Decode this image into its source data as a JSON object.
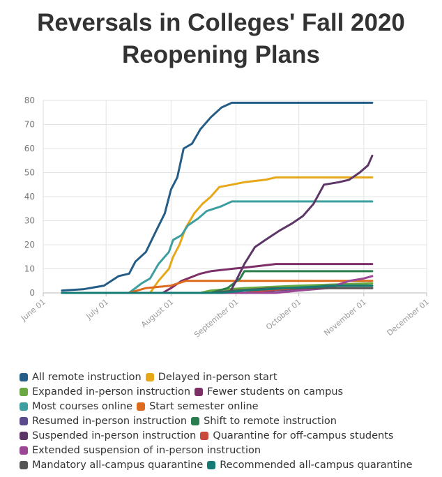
{
  "title_line1": "Reversals in Colleges' Fall 2020",
  "title_line2": "Reopening Plans",
  "chart_data": {
    "type": "line",
    "title": "Reversals in Colleges' Fall 2020 Reopening Plans",
    "xlabel": "",
    "ylabel": "",
    "ylim": [
      0,
      80
    ],
    "xlim": [
      "2020-06-01",
      "2020-12-01"
    ],
    "y_ticks": [
      "0",
      "10",
      "20",
      "30",
      "40",
      "50",
      "60",
      "70",
      "80"
    ],
    "x_ticks": [
      {
        "date": "2020-06-01",
        "label": "June 01"
      },
      {
        "date": "2020-07-01",
        "label": "July 01"
      },
      {
        "date": "2020-08-01",
        "label": "August 01"
      },
      {
        "date": "2020-09-01",
        "label": "September 01"
      },
      {
        "date": "2020-10-01",
        "label": "October 01"
      },
      {
        "date": "2020-11-01",
        "label": "November 01"
      },
      {
        "date": "2020-12-01",
        "label": "December 01"
      }
    ],
    "grid": true,
    "legend_position": "bottom",
    "series": [
      {
        "name": "All remote instruction",
        "color": "#255d86",
        "points": [
          [
            "2020-06-10",
            1
          ],
          [
            "2020-06-20",
            1.5
          ],
          [
            "2020-06-30",
            3
          ],
          [
            "2020-07-07",
            7
          ],
          [
            "2020-07-12",
            8
          ],
          [
            "2020-07-15",
            13
          ],
          [
            "2020-07-20",
            17
          ],
          [
            "2020-07-25",
            26
          ],
          [
            "2020-07-29",
            33
          ],
          [
            "2020-08-01",
            43
          ],
          [
            "2020-08-04",
            48
          ],
          [
            "2020-08-07",
            60
          ],
          [
            "2020-08-11",
            62
          ],
          [
            "2020-08-15",
            68
          ],
          [
            "2020-08-20",
            73
          ],
          [
            "2020-08-25",
            77
          ],
          [
            "2020-08-30",
            79
          ],
          [
            "2020-11-05",
            79
          ]
        ]
      },
      {
        "name": "Delayed in-person start",
        "color": "#e6a818",
        "points": [
          [
            "2020-06-10",
            0
          ],
          [
            "2020-07-22",
            0
          ],
          [
            "2020-07-26",
            5
          ],
          [
            "2020-07-31",
            10
          ],
          [
            "2020-08-02",
            15
          ],
          [
            "2020-08-05",
            20
          ],
          [
            "2020-08-08",
            27
          ],
          [
            "2020-08-12",
            33
          ],
          [
            "2020-08-16",
            37
          ],
          [
            "2020-08-20",
            40
          ],
          [
            "2020-08-24",
            44
          ],
          [
            "2020-08-30",
            45
          ],
          [
            "2020-09-05",
            46
          ],
          [
            "2020-09-15",
            47
          ],
          [
            "2020-09-20",
            48
          ],
          [
            "2020-11-05",
            48
          ]
        ]
      },
      {
        "name": "Expanded in-person instruction",
        "color": "#6aa842",
        "points": [
          [
            "2020-06-10",
            0
          ],
          [
            "2020-08-15",
            0
          ],
          [
            "2020-08-20",
            1
          ],
          [
            "2020-09-05",
            2
          ],
          [
            "2020-10-01",
            3
          ],
          [
            "2020-11-05",
            4
          ]
        ]
      },
      {
        "name": "Fewer students on campus",
        "color": "#7d3068",
        "points": [
          [
            "2020-06-10",
            0
          ],
          [
            "2020-07-28",
            0
          ],
          [
            "2020-08-01",
            2
          ],
          [
            "2020-08-06",
            5
          ],
          [
            "2020-08-15",
            8
          ],
          [
            "2020-08-20",
            9
          ],
          [
            "2020-08-30",
            10
          ],
          [
            "2020-09-10",
            11
          ],
          [
            "2020-09-20",
            12
          ],
          [
            "2020-11-05",
            12
          ]
        ]
      },
      {
        "name": "Most courses online",
        "color": "#3d9fa0",
        "points": [
          [
            "2020-06-10",
            0
          ],
          [
            "2020-07-12",
            0
          ],
          [
            "2020-07-18",
            4
          ],
          [
            "2020-07-22",
            6
          ],
          [
            "2020-07-26",
            12
          ],
          [
            "2020-07-31",
            17
          ],
          [
            "2020-08-02",
            22
          ],
          [
            "2020-08-06",
            24
          ],
          [
            "2020-08-09",
            28
          ],
          [
            "2020-08-14",
            31
          ],
          [
            "2020-08-18",
            34
          ],
          [
            "2020-08-25",
            36
          ],
          [
            "2020-08-30",
            38
          ],
          [
            "2020-11-05",
            38
          ]
        ]
      },
      {
        "name": "Start semester online",
        "color": "#dd6b1f",
        "points": [
          [
            "2020-06-10",
            0
          ],
          [
            "2020-07-12",
            0
          ],
          [
            "2020-07-20",
            2
          ],
          [
            "2020-08-01",
            3
          ],
          [
            "2020-08-08",
            5
          ],
          [
            "2020-11-05",
            5
          ]
        ]
      },
      {
        "name": "Resumed in-person instruction",
        "color": "#5b4a8c",
        "points": [
          [
            "2020-06-10",
            0
          ],
          [
            "2020-09-10",
            0
          ],
          [
            "2020-09-20",
            1
          ],
          [
            "2020-10-05",
            2
          ],
          [
            "2020-10-15",
            3
          ],
          [
            "2020-11-05",
            3
          ]
        ]
      },
      {
        "name": "Shift to remote instruction",
        "color": "#2a7e4e",
        "points": [
          [
            "2020-06-10",
            0
          ],
          [
            "2020-08-20",
            0
          ],
          [
            "2020-08-28",
            2
          ],
          [
            "2020-09-03",
            6
          ],
          [
            "2020-09-05",
            9
          ],
          [
            "2020-11-05",
            9
          ]
        ]
      },
      {
        "name": "Suspended in-person instruction",
        "color": "#5d3668",
        "points": [
          [
            "2020-06-10",
            0
          ],
          [
            "2020-08-29",
            0
          ],
          [
            "2020-09-01",
            5
          ],
          [
            "2020-09-05",
            12
          ],
          [
            "2020-09-10",
            19
          ],
          [
            "2020-09-15",
            22
          ],
          [
            "2020-09-22",
            26
          ],
          [
            "2020-09-28",
            29
          ],
          [
            "2020-10-03",
            32
          ],
          [
            "2020-10-08",
            37
          ],
          [
            "2020-10-13",
            45
          ],
          [
            "2020-10-20",
            46
          ],
          [
            "2020-10-25",
            47
          ],
          [
            "2020-10-30",
            50
          ],
          [
            "2020-11-03",
            53
          ],
          [
            "2020-11-05",
            57
          ]
        ]
      },
      {
        "name": "Quarantine for off-campus students",
        "color": "#c94a3d",
        "points": [
          [
            "2020-06-10",
            0
          ],
          [
            "2020-09-05",
            0
          ],
          [
            "2020-09-15",
            1
          ],
          [
            "2020-10-01",
            2
          ],
          [
            "2020-11-05",
            2
          ]
        ]
      },
      {
        "name": "Extended suspension of in-person instruction",
        "color": "#9b4796",
        "points": [
          [
            "2020-06-10",
            0
          ],
          [
            "2020-09-20",
            0
          ],
          [
            "2020-10-01",
            1
          ],
          [
            "2020-10-15",
            2
          ],
          [
            "2020-10-25",
            5
          ],
          [
            "2020-11-01",
            6
          ],
          [
            "2020-11-05",
            7
          ]
        ]
      },
      {
        "name": "Mandatory all-campus quarantine",
        "color": "#555555",
        "points": [
          [
            "2020-06-10",
            0
          ],
          [
            "2020-08-20",
            0
          ],
          [
            "2020-09-01",
            1
          ],
          [
            "2020-09-20",
            2
          ],
          [
            "2020-11-05",
            2
          ]
        ]
      },
      {
        "name": "Recommended all-campus quarantine",
        "color": "#147a74",
        "points": [
          [
            "2020-06-10",
            0
          ],
          [
            "2020-08-25",
            0
          ],
          [
            "2020-09-05",
            1
          ],
          [
            "2020-09-25",
            2
          ],
          [
            "2020-10-20",
            3
          ],
          [
            "2020-11-05",
            3
          ]
        ]
      }
    ]
  },
  "legend_rows": [
    [
      0,
      1
    ],
    [
      2,
      3
    ],
    [
      4,
      5
    ],
    [
      6,
      7
    ],
    [
      8,
      9
    ],
    [
      10
    ],
    [
      11,
      12
    ]
  ]
}
